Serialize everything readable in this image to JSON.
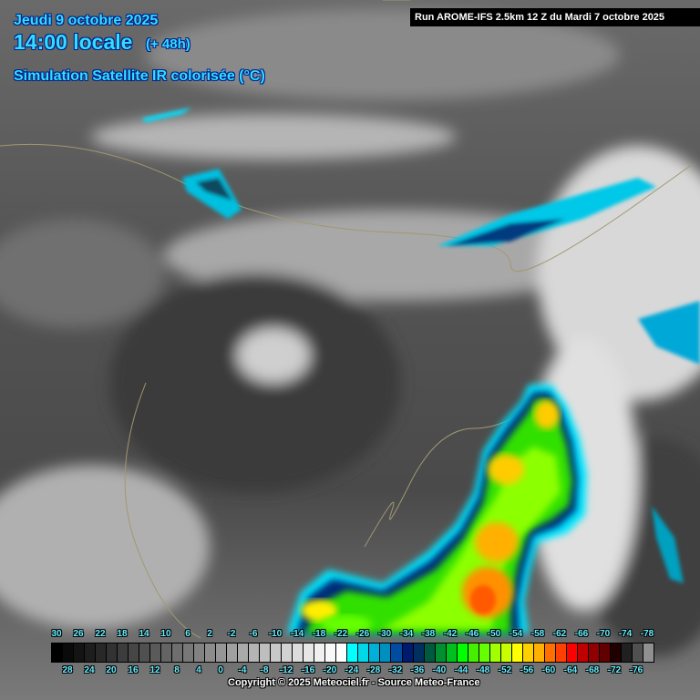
{
  "header": {
    "date": "Jeudi 9 octobre 2025",
    "time": "14:00 locale",
    "lead": "(+ 48h)",
    "product": "Simulation Satellite IR colorisée (°C)",
    "run": "Run AROME-IFS 2.5km 12 Z du Mardi 7 octobre 2025"
  },
  "colorbar": {
    "unit": "°C",
    "values": [
      30,
      28,
      26,
      24,
      22,
      20,
      18,
      16,
      14,
      12,
      10,
      8,
      6,
      4,
      2,
      0,
      -2,
      -4,
      -6,
      -8,
      -10,
      -12,
      -14,
      -16,
      -18,
      -20,
      -22,
      -24,
      -26,
      -28,
      -30,
      -32,
      -34,
      -36,
      -38,
      -40,
      -42,
      -44,
      -46,
      -48,
      -50,
      -52,
      -54,
      -56,
      -58,
      -60,
      -62,
      -64,
      -66,
      -68,
      -70,
      -72,
      -74,
      -76,
      -78
    ],
    "top_labels": [
      "30",
      "26",
      "22",
      "18",
      "14",
      "10",
      "6",
      "2",
      "-2",
      "-6",
      "-10",
      "-14",
      "-18",
      "-22",
      "-26",
      "-30",
      "-34",
      "-38",
      "-42",
      "-46",
      "-50",
      "-54",
      "-58",
      "-62",
      "-66",
      "-70",
      "-74",
      "-78"
    ],
    "bottom_labels": [
      "28",
      "24",
      "20",
      "16",
      "12",
      "8",
      "4",
      "0",
      "-4",
      "-8",
      "-12",
      "-16",
      "-20",
      "-24",
      "-28",
      "-32",
      "-36",
      "-40",
      "-44",
      "-48",
      "-52",
      "-56",
      "-60",
      "-64",
      "-68",
      "-72",
      "-76"
    ],
    "colors": [
      "#000000",
      "#0a0a0a",
      "#141414",
      "#1e1e1e",
      "#282828",
      "#323232",
      "#3c3c3c",
      "#464646",
      "#505050",
      "#5a5a5a",
      "#646464",
      "#6e6e6e",
      "#787878",
      "#828282",
      "#8c8c8c",
      "#969696",
      "#a0a0a0",
      "#aaaaaa",
      "#b4b4b4",
      "#bebebe",
      "#c8c8c8",
      "#d2d2d2",
      "#dcdcdc",
      "#e6e6e6",
      "#f0f0f0",
      "#f8f8f8",
      "#ffffff",
      "#00ffff",
      "#00d8e8",
      "#00b0d8",
      "#0090c0",
      "#004ca0",
      "#001a70",
      "#003060",
      "#005a40",
      "#009030",
      "#00c020",
      "#00ff00",
      "#44f000",
      "#66ff00",
      "#a0ff00",
      "#c8ff00",
      "#ffff00",
      "#ffd000",
      "#ffb000",
      "#ff7000",
      "#ff4000",
      "#ff0000",
      "#c00000",
      "#900000",
      "#600000",
      "#200000",
      "#202020",
      "#505050",
      "#909090",
      "#c0c0c0"
    ],
    "copyright": "Copyright © 2025 Meteociel.fr - Source Meteo-France"
  }
}
